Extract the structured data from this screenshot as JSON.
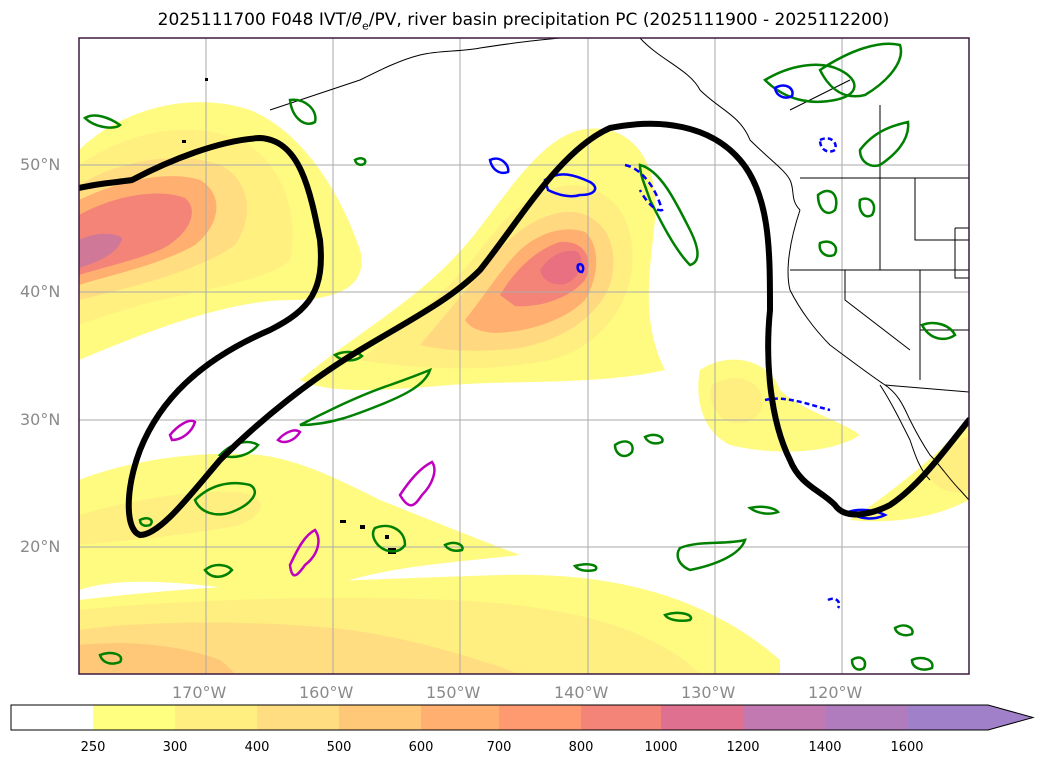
{
  "title_main": "2025111700 F048 IVT/",
  "title_theta": "θ",
  "title_sub": "e",
  "title_rest": "/PV, river basin precipitation PC (2025111900 - 2025112200)",
  "map": {
    "lon_labels": [
      "170°W",
      "160°W",
      "150°W",
      "140°W",
      "130°W",
      "120°W"
    ],
    "lat_labels": [
      "50°N",
      "40°N",
      "30°N",
      "20°N"
    ],
    "grid": true
  },
  "colorbar": {
    "ticks": [
      "250",
      "300",
      "400",
      "500",
      "600",
      "700",
      "800",
      "1000",
      "1200",
      "1400",
      "1600"
    ],
    "colors": [
      "#ffffff",
      "#ffff80",
      "#ffee80",
      "#ffdd80",
      "#ffc878",
      "#ffb070",
      "#ff9a70",
      "#f58478",
      "#e07090",
      "#c278b0",
      "#a080c8"
    ],
    "extend": "max"
  },
  "colors": {
    "thick_contour": "#000000",
    "green_contours": "#008000",
    "blue_contours": "#0000ff",
    "magenta_contours": "#c000c0",
    "grid": "#aaaaaa",
    "tick_text": "#8a8a8a"
  }
}
